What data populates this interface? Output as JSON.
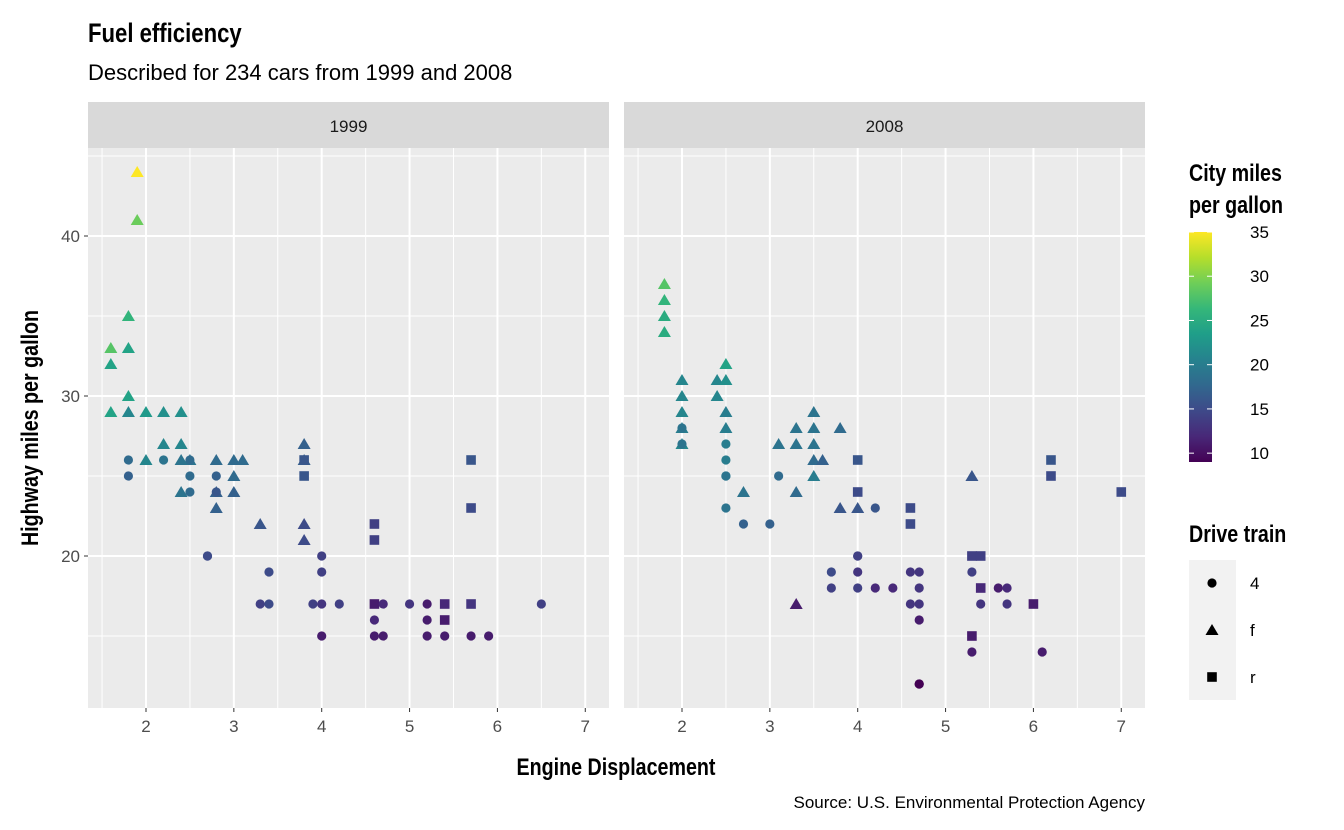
{
  "chart_data": {
    "type": "scatter",
    "title": "Fuel efficiency",
    "subtitle": "Described for 234 cars from 1999 and 2008",
    "caption": "Source: U.S. Environmental Protection Agency",
    "xlabel": "Engine Displacement",
    "ylabel": "Highway miles per gallon",
    "xlim": [
      1.34,
      7.27
    ],
    "ylim": [
      10.5,
      45.5
    ],
    "x_ticks": [
      "2",
      "3",
      "4",
      "5",
      "6",
      "7"
    ],
    "y_ticks": [
      "20",
      "30",
      "40"
    ],
    "grid": true,
    "facets": [
      "1999",
      "2008"
    ],
    "color_legend": {
      "title_line1": "City miles",
      "title_line2": "per gallon",
      "range": [
        9,
        35
      ],
      "ticks": [
        "10",
        "15",
        "20",
        "25",
        "30",
        "35"
      ],
      "palette": "viridis",
      "placement": "right"
    },
    "shape_legend": {
      "title": "Drive train",
      "entries": [
        {
          "label": "4",
          "shape": "circle"
        },
        {
          "label": "f",
          "shape": "triangle"
        },
        {
          "label": "r",
          "shape": "square"
        }
      ],
      "placement": "right"
    },
    "point_fields": [
      "displ",
      "hwy",
      "cty",
      "drv"
    ],
    "points": {
      "1999": [
        [
          1.9,
          44,
          35,
          "f"
        ],
        [
          1.9,
          41,
          29,
          "f"
        ],
        [
          1.8,
          35,
          26,
          "f"
        ],
        [
          1.6,
          33,
          28,
          "f"
        ],
        [
          1.8,
          33,
          24,
          "f"
        ],
        [
          1.6,
          32,
          24,
          "f"
        ],
        [
          1.8,
          30,
          24,
          "f"
        ],
        [
          1.6,
          29,
          24,
          "f"
        ],
        [
          1.8,
          29,
          21,
          "f"
        ],
        [
          2.0,
          29,
          23,
          "f"
        ],
        [
          2.2,
          29,
          22,
          "f"
        ],
        [
          2.4,
          29,
          22,
          "f"
        ],
        [
          2.2,
          27,
          21,
          "f"
        ],
        [
          2.4,
          27,
          21,
          "f"
        ],
        [
          1.8,
          26,
          18,
          "4"
        ],
        [
          2.0,
          26,
          21,
          "f"
        ],
        [
          2.2,
          26,
          19,
          "4"
        ],
        [
          2.4,
          26,
          19,
          "f"
        ],
        [
          2.5,
          26,
          19,
          "f"
        ],
        [
          2.5,
          26,
          18,
          "4"
        ],
        [
          2.8,
          26,
          18,
          "f"
        ],
        [
          3.0,
          26,
          18,
          "f"
        ],
        [
          3.1,
          26,
          18,
          "f"
        ],
        [
          3.8,
          27,
          17,
          "f"
        ],
        [
          3.8,
          26,
          17,
          "f"
        ],
        [
          3.8,
          26,
          16,
          "r"
        ],
        [
          1.8,
          25,
          17,
          "4"
        ],
        [
          2.5,
          25,
          18,
          "4"
        ],
        [
          2.8,
          25,
          17,
          "4"
        ],
        [
          3.0,
          25,
          18,
          "f"
        ],
        [
          3.8,
          25,
          16,
          "r"
        ],
        [
          2.4,
          24,
          19,
          "f"
        ],
        [
          2.5,
          24,
          18,
          "4"
        ],
        [
          2.8,
          24,
          17,
          "f"
        ],
        [
          2.8,
          24,
          16,
          "4"
        ],
        [
          3.0,
          24,
          17,
          "f"
        ],
        [
          2.8,
          23,
          17,
          "f"
        ],
        [
          3.3,
          22,
          16,
          "f"
        ],
        [
          3.8,
          22,
          15,
          "f"
        ],
        [
          4.6,
          22,
          14,
          "r"
        ],
        [
          3.8,
          21,
          15,
          "f"
        ],
        [
          4.6,
          21,
          14,
          "r"
        ],
        [
          2.7,
          20,
          15,
          "4"
        ],
        [
          2.7,
          20,
          15,
          "4"
        ],
        [
          4.0,
          20,
          14,
          "4"
        ],
        [
          3.4,
          19,
          15,
          "4"
        ],
        [
          4.0,
          19,
          14,
          "4"
        ],
        [
          3.3,
          17,
          14,
          "4"
        ],
        [
          3.4,
          17,
          15,
          "4"
        ],
        [
          3.9,
          17,
          14,
          "4"
        ],
        [
          4.0,
          17,
          13,
          "4"
        ],
        [
          4.2,
          17,
          14,
          "4"
        ],
        [
          4.6,
          17,
          11,
          "r"
        ],
        [
          4.7,
          17,
          12,
          "4"
        ],
        [
          5.0,
          17,
          13,
          "4"
        ],
        [
          5.2,
          17,
          11,
          "4"
        ],
        [
          5.4,
          17,
          12,
          "r"
        ],
        [
          5.7,
          17,
          13,
          "r"
        ],
        [
          6.5,
          17,
          14,
          "4"
        ],
        [
          4.6,
          16,
          12,
          "4"
        ],
        [
          5.2,
          16,
          11,
          "4"
        ],
        [
          5.4,
          16,
          11,
          "r"
        ],
        [
          4.0,
          15,
          11,
          "4"
        ],
        [
          4.6,
          15,
          11,
          "4"
        ],
        [
          4.7,
          15,
          11,
          "4"
        ],
        [
          5.2,
          15,
          11,
          "4"
        ],
        [
          5.4,
          15,
          11,
          "4"
        ],
        [
          5.7,
          15,
          11,
          "4"
        ],
        [
          5.9,
          15,
          11,
          "4"
        ],
        [
          5.7,
          26,
          16,
          "r"
        ],
        [
          5.7,
          23,
          15,
          "r"
        ]
      ],
      "2008": [
        [
          1.8,
          37,
          28,
          "f"
        ],
        [
          1.8,
          36,
          26,
          "f"
        ],
        [
          1.8,
          35,
          25,
          "f"
        ],
        [
          1.8,
          34,
          25,
          "f"
        ],
        [
          2.0,
          31,
          21,
          "f"
        ],
        [
          2.0,
          30,
          21,
          "f"
        ],
        [
          2.0,
          29,
          21,
          "f"
        ],
        [
          2.0,
          28,
          20,
          "f"
        ],
        [
          2.0,
          28,
          19,
          "4"
        ],
        [
          2.0,
          27,
          21,
          "f"
        ],
        [
          2.0,
          27,
          19,
          "4"
        ],
        [
          2.4,
          31,
          21,
          "f"
        ],
        [
          2.5,
          32,
          24,
          "f"
        ],
        [
          2.5,
          31,
          22,
          "f"
        ],
        [
          2.4,
          30,
          21,
          "f"
        ],
        [
          2.5,
          29,
          20,
          "f"
        ],
        [
          2.5,
          28,
          20,
          "f"
        ],
        [
          2.5,
          27,
          20,
          "4"
        ],
        [
          2.5,
          26,
          20,
          "4"
        ],
        [
          2.5,
          25,
          20,
          "4"
        ],
        [
          2.5,
          25,
          19,
          "4"
        ],
        [
          2.5,
          23,
          19,
          "4"
        ],
        [
          2.7,
          24,
          19,
          "f"
        ],
        [
          2.7,
          22,
          17,
          "4"
        ],
        [
          3.0,
          22,
          17,
          "4"
        ],
        [
          3.1,
          25,
          18,
          "4"
        ],
        [
          3.1,
          27,
          19,
          "f"
        ],
        [
          3.3,
          28,
          19,
          "f"
        ],
        [
          3.3,
          27,
          19,
          "f"
        ],
        [
          3.3,
          24,
          18,
          "f"
        ],
        [
          3.3,
          17,
          11,
          "f"
        ],
        [
          3.5,
          29,
          19,
          "f"
        ],
        [
          3.5,
          28,
          19,
          "f"
        ],
        [
          3.5,
          27,
          19,
          "f"
        ],
        [
          3.5,
          26,
          18,
          "f"
        ],
        [
          3.6,
          26,
          17,
          "f"
        ],
        [
          3.5,
          25,
          20,
          "f"
        ],
        [
          3.8,
          28,
          18,
          "f"
        ],
        [
          3.8,
          23,
          16,
          "f"
        ],
        [
          4.0,
          23,
          16,
          "f"
        ],
        [
          4.2,
          23,
          16,
          "4"
        ],
        [
          4.0,
          26,
          16,
          "r"
        ],
        [
          4.0,
          24,
          15,
          "r"
        ],
        [
          3.7,
          19,
          15,
          "4"
        ],
        [
          3.7,
          18,
          14,
          "4"
        ],
        [
          4.0,
          20,
          15,
          "4"
        ],
        [
          4.0,
          20,
          14,
          "4"
        ],
        [
          4.0,
          19,
          13,
          "4"
        ],
        [
          4.0,
          18,
          14,
          "4"
        ],
        [
          4.2,
          18,
          12,
          "4"
        ],
        [
          4.4,
          18,
          12,
          "4"
        ],
        [
          4.6,
          23,
          15,
          "r"
        ],
        [
          4.6,
          22,
          15,
          "r"
        ],
        [
          4.6,
          19,
          13,
          "4"
        ],
        [
          4.7,
          19,
          13,
          "4"
        ],
        [
          4.7,
          18,
          13,
          "4"
        ],
        [
          4.6,
          17,
          13,
          "4"
        ],
        [
          4.7,
          17,
          13,
          "4"
        ],
        [
          4.7,
          16,
          11,
          "4"
        ],
        [
          4.7,
          12,
          9,
          "4"
        ],
        [
          4.7,
          12,
          9,
          "4"
        ],
        [
          5.3,
          25,
          16,
          "f"
        ],
        [
          5.3,
          20,
          14,
          "r"
        ],
        [
          5.4,
          20,
          14,
          "r"
        ],
        [
          5.3,
          19,
          14,
          "4"
        ],
        [
          5.4,
          18,
          12,
          "r"
        ],
        [
          5.4,
          17,
          13,
          "4"
        ],
        [
          5.6,
          18,
          11,
          "4"
        ],
        [
          5.7,
          18,
          12,
          "4"
        ],
        [
          5.7,
          17,
          13,
          "4"
        ],
        [
          6.0,
          17,
          11,
          "r"
        ],
        [
          5.3,
          15,
          11,
          "r"
        ],
        [
          5.3,
          14,
          11,
          "4"
        ],
        [
          6.1,
          14,
          11,
          "4"
        ],
        [
          6.2,
          26,
          16,
          "r"
        ],
        [
          6.2,
          25,
          15,
          "r"
        ],
        [
          7.0,
          24,
          15,
          "r"
        ]
      ]
    }
  }
}
